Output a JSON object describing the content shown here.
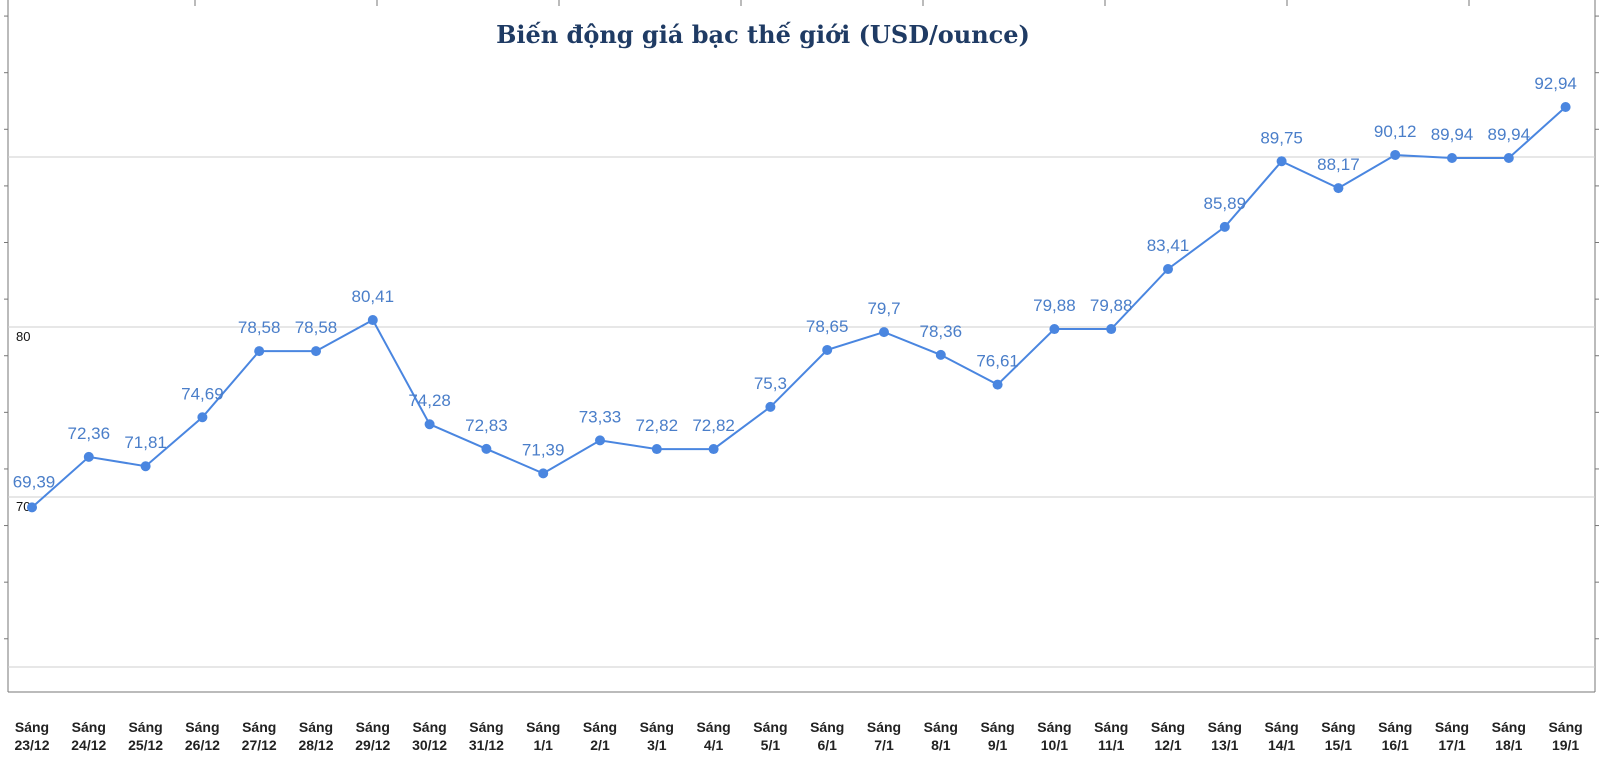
{
  "chart_data": {
    "type": "line",
    "title": "Biến động giá bạc thế giới (USD/ounce)",
    "xlabel": "",
    "ylabel": "",
    "grid": true,
    "ylim": [
      55,
      100
    ],
    "yticks": [
      {
        "value": 70,
        "label": "70"
      },
      {
        "value": 80,
        "label": "80"
      }
    ],
    "categories": [
      [
        "Sáng",
        "23/12"
      ],
      [
        "Sáng",
        "24/12"
      ],
      [
        "Sáng",
        "25/12"
      ],
      [
        "Sáng",
        "26/12"
      ],
      [
        "Sáng",
        "27/12"
      ],
      [
        "Sáng",
        "28/12"
      ],
      [
        "Sáng",
        "29/12"
      ],
      [
        "Sáng",
        "30/12"
      ],
      [
        "Sáng",
        "31/12"
      ],
      [
        "Sáng",
        "1/1"
      ],
      [
        "Sáng",
        "2/1"
      ],
      [
        "Sáng",
        "3/1"
      ],
      [
        "Sáng",
        "4/1"
      ],
      [
        "Sáng",
        "5/1"
      ],
      [
        "Sáng",
        "6/1"
      ],
      [
        "Sáng",
        "7/1"
      ],
      [
        "Sáng",
        "8/1"
      ],
      [
        "Sáng",
        "9/1"
      ],
      [
        "Sáng",
        "10/1"
      ],
      [
        "Sáng",
        "11/1"
      ],
      [
        "Sáng",
        "12/1"
      ],
      [
        "Sáng",
        "13/1"
      ],
      [
        "Sáng",
        "14/1"
      ],
      [
        "Sáng",
        "15/1"
      ],
      [
        "Sáng",
        "16/1"
      ],
      [
        "Sáng",
        "17/1"
      ],
      [
        "Sáng",
        "18/1"
      ],
      [
        "Sáng",
        "19/1"
      ]
    ],
    "series": [
      {
        "values": [
          69.39,
          72.36,
          71.81,
          74.69,
          78.58,
          78.58,
          80.41,
          74.28,
          72.83,
          71.39,
          73.33,
          72.82,
          72.82,
          75.3,
          78.65,
          79.7,
          78.36,
          76.61,
          79.88,
          79.88,
          83.41,
          85.89,
          89.75,
          88.17,
          90.12,
          89.94,
          89.94,
          92.94
        ],
        "labels": [
          "69,39",
          "72,36",
          "71,81",
          "74,69",
          "78,58",
          "78,58",
          "80,41",
          "74,28",
          "72,83",
          "71,39",
          "73,33",
          "72,82",
          "72,82",
          "75,3",
          "78,65",
          "79,7",
          "78,36",
          "76,61",
          "79,88",
          "79,88",
          "83,41",
          "85,89",
          "89,75",
          "88,17",
          "90,12",
          "89,94",
          "89,94",
          "92,94"
        ],
        "color": "#4a86e0",
        "label_color": "#4a7ec9"
      }
    ]
  }
}
